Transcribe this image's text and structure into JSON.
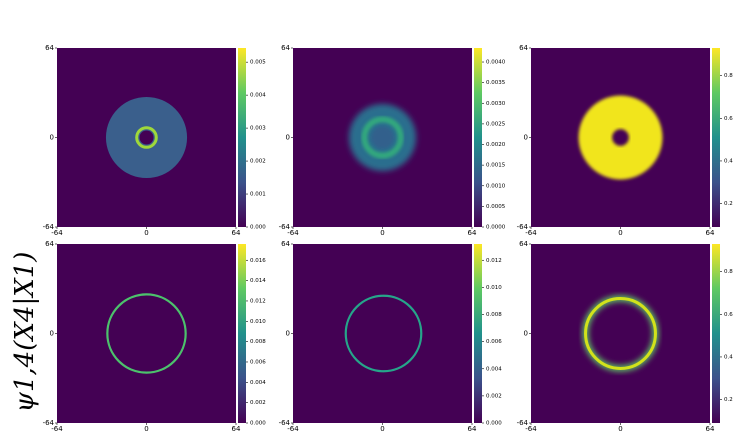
{
  "chart_data": [
    {
      "type": "heatmap",
      "xlim": [
        -64,
        64
      ],
      "ylim": [
        -64,
        64
      ],
      "xticks": [
        -64,
        0,
        64
      ],
      "yticks": [
        -64,
        0,
        64
      ],
      "clim": [
        0,
        0.00543
      ],
      "cticks": [
        {
          "value": 0,
          "label": "0.000"
        },
        0.001,
        0.002,
        0.003,
        0.004,
        0.005
      ]
    },
    {
      "type": "heatmap",
      "xlim": [
        -64,
        64
      ],
      "ylim": [
        -64,
        64
      ],
      "xticks": [
        -64,
        0,
        64
      ],
      "yticks": [
        -64,
        0,
        64
      ],
      "clim": [
        0,
        0.00434
      ],
      "cticks": [
        {
          "value": 0,
          "label": "0.0000"
        },
        0.0005,
        {
          "value": 0.001,
          "label": "0.0010"
        },
        0.0015,
        {
          "value": 0.002,
          "label": "0.0020"
        },
        0.0025,
        {
          "value": 0.003,
          "label": "0.0030"
        },
        0.0035,
        {
          "value": 0.004,
          "label": "0.0040"
        }
      ]
    },
    {
      "type": "heatmap",
      "xlim": [
        -64,
        64
      ],
      "ylim": [
        -64,
        64
      ],
      "xticks": [
        -64,
        0,
        64
      ],
      "yticks": [
        -64,
        0,
        64
      ],
      "clim": [
        0.09,
        0.93
      ],
      "cticks": [
        0.2,
        0.4,
        0.6,
        0.8
      ]
    },
    {
      "type": "heatmap",
      "xlim": [
        -64,
        64
      ],
      "ylim": [
        -64,
        64
      ],
      "xticks": [
        -64,
        0,
        64
      ],
      "yticks": [
        -64,
        0,
        64
      ],
      "clim": [
        0,
        0.0176
      ],
      "cticks": [
        {
          "value": 0,
          "label": "0.000"
        },
        {
          "value": 0.002,
          "label": "0.002"
        },
        {
          "value": 0.004,
          "label": "0.004"
        },
        {
          "value": 0.006,
          "label": "0.006"
        },
        {
          "value": 0.008,
          "label": "0.008"
        },
        {
          "value": 0.01,
          "label": "0.010"
        },
        {
          "value": 0.012,
          "label": "0.012"
        },
        {
          "value": 0.014,
          "label": "0.014"
        },
        {
          "value": 0.016,
          "label": "0.016"
        }
      ]
    },
    {
      "type": "heatmap",
      "xlim": [
        -64,
        64
      ],
      "ylim": [
        -64,
        64
      ],
      "xticks": [
        -64,
        0,
        64
      ],
      "yticks": [
        -64,
        0,
        64
      ],
      "clim": [
        0,
        0.0132
      ],
      "cticks": [
        {
          "value": 0,
          "label": "0.000"
        },
        {
          "value": 0.002,
          "label": "0.002"
        },
        {
          "value": 0.004,
          "label": "0.004"
        },
        {
          "value": 0.006,
          "label": "0.006"
        },
        {
          "value": 0.008,
          "label": "0.008"
        },
        {
          "value": 0.01,
          "label": "0.010"
        },
        {
          "value": 0.012,
          "label": "0.012"
        }
      ]
    },
    {
      "type": "heatmap",
      "xlim": [
        -64,
        64
      ],
      "ylim": [
        -64,
        64
      ],
      "xticks": [
        -64,
        0,
        64
      ],
      "yticks": [
        -64,
        0,
        64
      ],
      "clim": [
        0.09,
        0.93
      ],
      "cticks": [
        0.2,
        0.4,
        0.6,
        0.8
      ]
    }
  ],
  "row_label": "ψ1,4(X4|X1)"
}
